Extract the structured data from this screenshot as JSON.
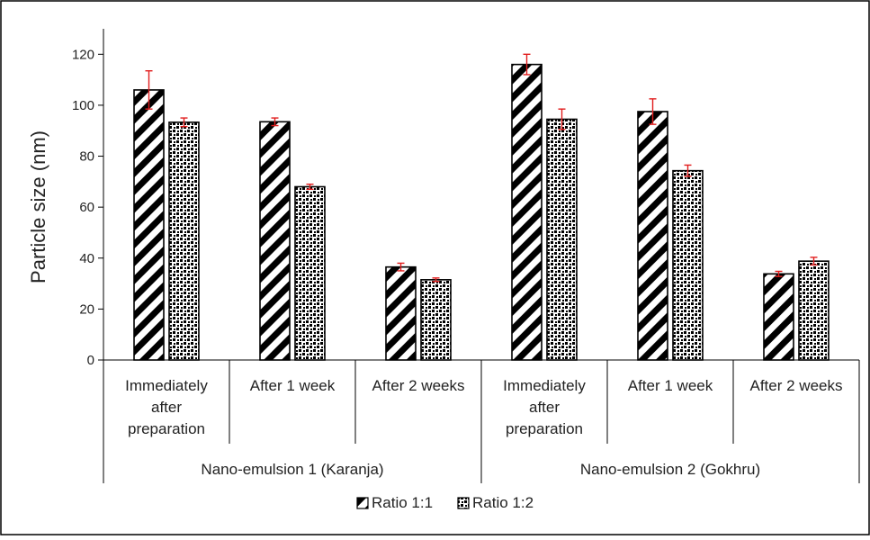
{
  "chart_data": {
    "type": "bar",
    "title": "",
    "xlabel": "",
    "ylabel": "Particle size (nm)",
    "ylim": [
      0,
      130
    ],
    "yticks": [
      0,
      20,
      40,
      60,
      80,
      100,
      120
    ],
    "grid": false,
    "legend_position": "bottom-center",
    "groups": [
      {
        "label": "Nano-emulsion 1 (Karanja)",
        "categories": [
          [
            "Immediately",
            "after",
            "preparation"
          ],
          [
            "After 1 week"
          ],
          [
            "After 2 weeks"
          ]
        ]
      },
      {
        "label": "Nano-emulsion 2 (Gokhru)",
        "categories": [
          [
            "Immediately",
            "after",
            "preparation"
          ],
          [
            "After 1 week"
          ],
          [
            "After 2 weeks"
          ]
        ]
      }
    ],
    "series": [
      {
        "name": "Ratio 1:1",
        "pattern": "diagonal-stripes",
        "values": [
          106,
          93.5,
          36.5,
          116,
          97.5,
          33.8
        ],
        "errors": [
          7.5,
          1.5,
          1.5,
          4,
          5,
          1
        ]
      },
      {
        "name": "Ratio 1:2",
        "pattern": "dots",
        "values": [
          93.3,
          68,
          31.5,
          94.5,
          74.3,
          38.8
        ],
        "errors": [
          1.7,
          1,
          0.7,
          4,
          2.2,
          1.5
        ]
      }
    ],
    "colors": {
      "bar_edge": "#000000",
      "error_bar": "#e11d1d",
      "axis": "#000000"
    }
  }
}
